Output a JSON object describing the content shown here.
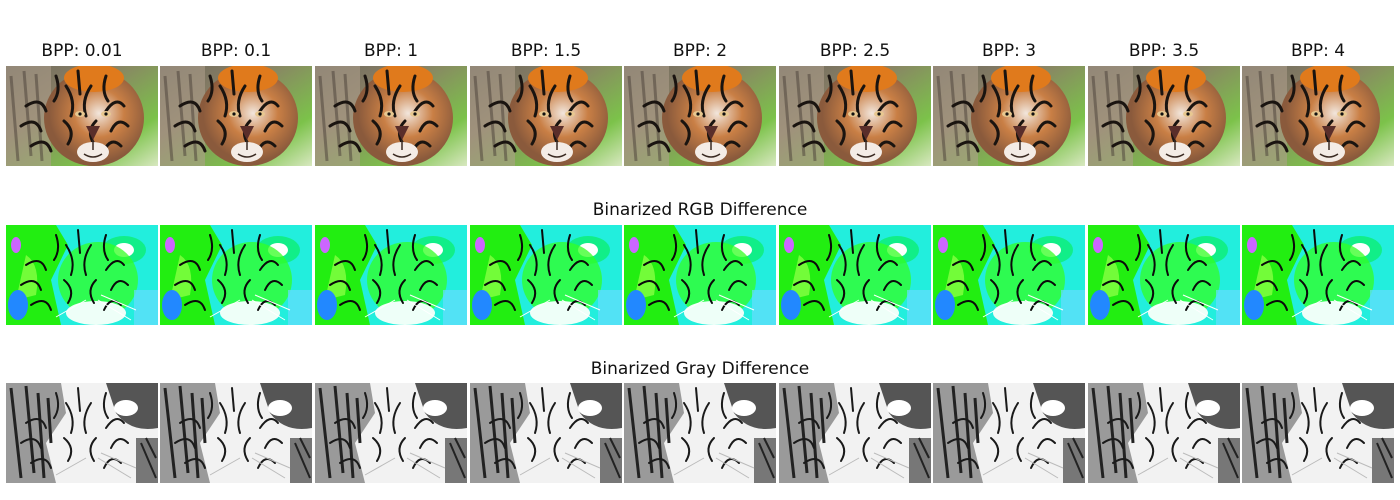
{
  "columns": [
    {
      "bpp_label": "BPP: 0.01"
    },
    {
      "bpp_label": "BPP: 0.1"
    },
    {
      "bpp_label": "BPP: 1"
    },
    {
      "bpp_label": "BPP: 1.5"
    },
    {
      "bpp_label": "BPP: 2"
    },
    {
      "bpp_label": "BPP: 2.5"
    },
    {
      "bpp_label": "BPP: 3"
    },
    {
      "bpp_label": "BPP: 3.5"
    },
    {
      "bpp_label": "BPP: 4"
    }
  ],
  "rows": {
    "reconstruction": {
      "title": ""
    },
    "rgb_difference": {
      "title": "Binarized RGB Difference"
    },
    "gray_difference": {
      "title": "Binarized Gray Difference"
    }
  },
  "colors": {
    "tiger_orange": "#c8702c",
    "tiger_fur_light": "#e8d0c0",
    "background_green": "#7cc24a",
    "rgb_green": "#22ee11",
    "rgb_cyan": "#22eedd",
    "gray_dark": "#222222"
  }
}
